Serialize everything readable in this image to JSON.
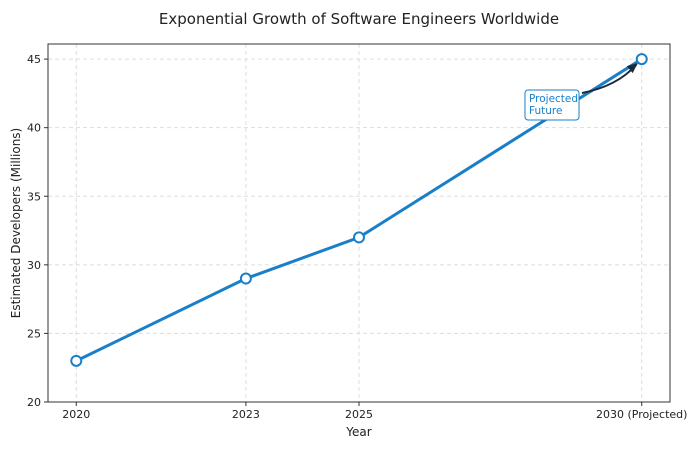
{
  "chart_data": {
    "type": "line",
    "title": "Exponential Growth of Software Engineers Worldwide",
    "xlabel": "Year",
    "ylabel": "Estimated Developers (Millions)",
    "x": [
      2020,
      2023,
      2025,
      2030
    ],
    "x_tick_labels": [
      "2020",
      "2023",
      "2025",
      "2030 (Projected)"
    ],
    "values": [
      23,
      29,
      32,
      45
    ],
    "xlim": [
      2019.5,
      2030.5
    ],
    "ylim": [
      20,
      46.1
    ],
    "y_ticks": [
      20,
      25,
      30,
      35,
      40,
      45
    ],
    "grid": true,
    "line_color": "#1a7fc9",
    "annotation": {
      "text_lines": [
        "Projected",
        "Future"
      ],
      "target_x": 2030,
      "target_y": 45
    }
  }
}
